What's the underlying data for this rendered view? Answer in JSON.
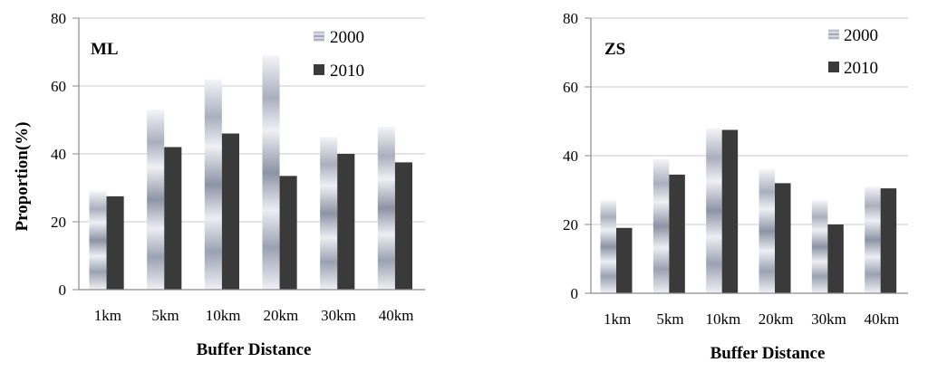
{
  "chart_data": [
    {
      "type": "bar",
      "panel_label": "ML",
      "categories": [
        "1km",
        "5km",
        "10km",
        "20km",
        "30km",
        "40km"
      ],
      "series": [
        {
          "name": "2000",
          "values": [
            29,
            53,
            62,
            69,
            45,
            48
          ]
        },
        {
          "name": "2010",
          "values": [
            27.5,
            42,
            46,
            33.5,
            40,
            37.5
          ]
        }
      ],
      "xlabel": "Buffer Distance",
      "ylabel": "Proportion(%)",
      "ylim": [
        0,
        80
      ],
      "yticks": [
        "0",
        "20",
        "40",
        "60",
        "80"
      ],
      "grid": true,
      "legend_position": "top-right"
    },
    {
      "type": "bar",
      "panel_label": "ZS",
      "categories": [
        "1km",
        "5km",
        "10km",
        "20km",
        "30km",
        "40km"
      ],
      "series": [
        {
          "name": "2000",
          "values": [
            27,
            39,
            48,
            36,
            27,
            31
          ]
        },
        {
          "name": "2010",
          "values": [
            19,
            34.5,
            47.5,
            32,
            20,
            30.5
          ]
        }
      ],
      "xlabel": "Buffer Distance",
      "ylabel": "",
      "ylim": [
        0,
        80
      ],
      "yticks": [
        "0",
        "20",
        "40",
        "60",
        "80"
      ],
      "grid": true,
      "legend_position": "top-right"
    }
  ],
  "colors": {
    "series_2010": "#3a3a3a",
    "series_2000_light": "#f4f5f8",
    "series_2000_dark": "#8c93a4",
    "gridline": "#c8c8c8",
    "axis": "#8a8a8a"
  }
}
